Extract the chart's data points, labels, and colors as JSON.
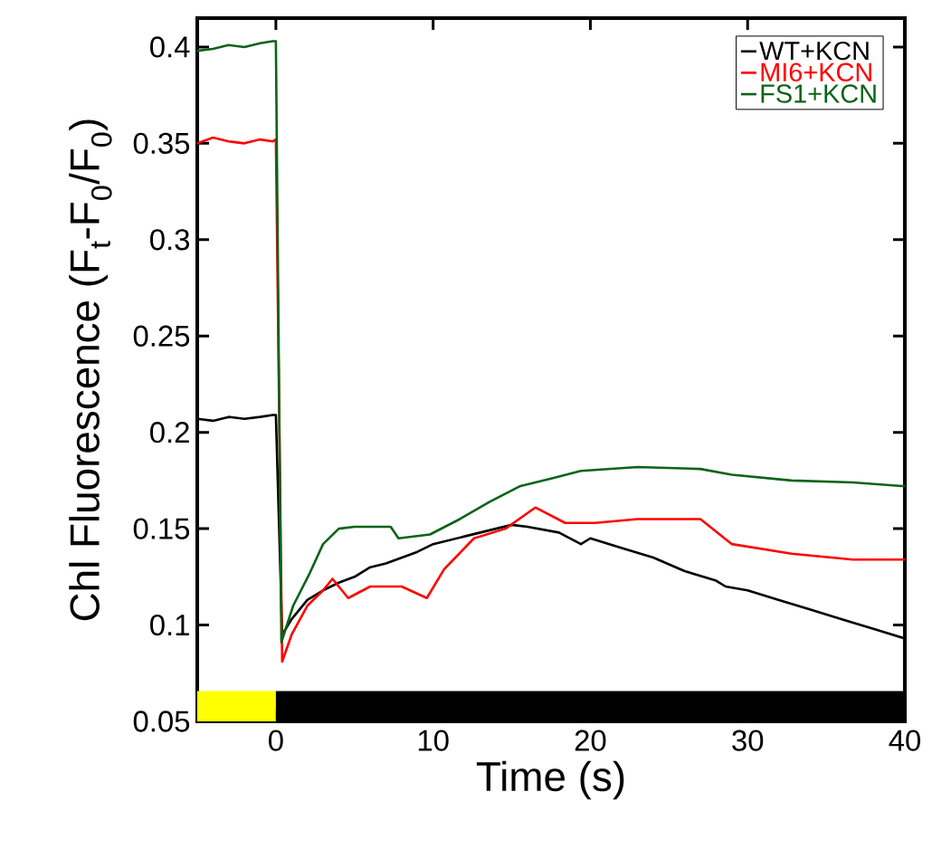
{
  "chart_data": {
    "type": "line",
    "xlabel": "Time (s)",
    "ylabel": "Chl Fluorescence (F$_{t}$-F$_{0}$/F$_{0}$)",
    "xlim": [
      -5,
      40
    ],
    "ylim": [
      0.05,
      0.415
    ],
    "xticks": [
      0,
      10,
      20,
      30,
      40
    ],
    "yticks": [
      0.05,
      0.1,
      0.15,
      0.2,
      0.25,
      0.3,
      0.35,
      0.4
    ],
    "legend": "top right",
    "grid": false,
    "line_style": "solid",
    "marker": "none",
    "bands": [
      {
        "axis": "x",
        "from": -5,
        "to": 0,
        "color": "#ffff00"
      },
      {
        "axis": "x",
        "from": 0,
        "to": 40,
        "color": "#000000"
      }
    ],
    "series": [
      {
        "name": "WT+KCN",
        "color": "#000000",
        "x": [
          -5,
          -4,
          -3,
          -2,
          -1,
          -0.2,
          0,
          0.4,
          1,
          2,
          3,
          4,
          5,
          6,
          7,
          8,
          9,
          10,
          12,
          14,
          15,
          16,
          18,
          19.4,
          20,
          22,
          24,
          26,
          28,
          28.6,
          30,
          32,
          34,
          36,
          38,
          40
        ],
        "values": [
          0.207,
          0.206,
          0.208,
          0.207,
          0.208,
          0.209,
          0.209,
          0.095,
          0.103,
          0.113,
          0.118,
          0.122,
          0.125,
          0.13,
          0.132,
          0.135,
          0.138,
          0.142,
          0.146,
          0.15,
          0.152,
          0.151,
          0.148,
          0.142,
          0.145,
          0.14,
          0.135,
          0.128,
          0.123,
          0.12,
          0.118,
          0.113,
          0.108,
          0.103,
          0.098,
          0.093
        ]
      },
      {
        "name": "MI6+KCN",
        "color": "#ff0000",
        "x": [
          -5,
          -4,
          -3,
          -2,
          -1,
          -0.2,
          0,
          0.4,
          1,
          2,
          3,
          3.6,
          4.6,
          6,
          8,
          9.6,
          10.7,
          12.6,
          14.6,
          16.5,
          18.4,
          20.3,
          23,
          27,
          29,
          32.8,
          36.7,
          40
        ],
        "values": [
          0.35,
          0.353,
          0.351,
          0.35,
          0.352,
          0.351,
          0.352,
          0.081,
          0.095,
          0.11,
          0.118,
          0.124,
          0.114,
          0.12,
          0.12,
          0.114,
          0.129,
          0.145,
          0.15,
          0.161,
          0.153,
          0.153,
          0.155,
          0.155,
          0.142,
          0.137,
          0.134,
          0.134
        ]
      },
      {
        "name": "FS1+KCN",
        "color": "#0b6318",
        "x": [
          -5,
          -4,
          -3,
          -2,
          -1,
          -0.2,
          0,
          0.35,
          1.1,
          2.1,
          3,
          4,
          5,
          7.3,
          7.8,
          9.8,
          11.7,
          13.6,
          15.5,
          17.5,
          19.4,
          23,
          27,
          29,
          32.8,
          36.7,
          40
        ],
        "values": [
          0.398,
          0.399,
          0.401,
          0.4,
          0.402,
          0.403,
          0.403,
          0.091,
          0.11,
          0.126,
          0.142,
          0.15,
          0.151,
          0.151,
          0.145,
          0.147,
          0.155,
          0.164,
          0.172,
          0.176,
          0.18,
          0.182,
          0.181,
          0.178,
          0.175,
          0.174,
          0.172
        ]
      }
    ]
  }
}
